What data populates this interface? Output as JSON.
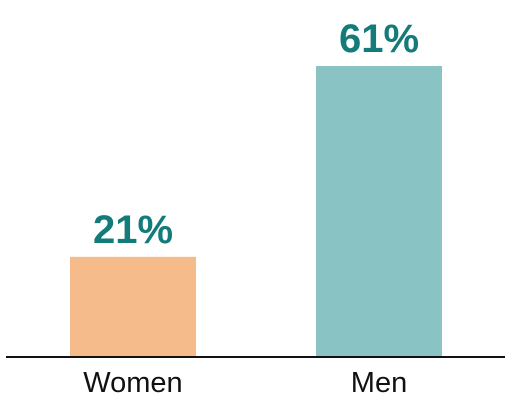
{
  "chart_data": {
    "type": "bar",
    "categories": [
      "Women",
      "Men"
    ],
    "values": [
      21,
      61
    ],
    "value_labels": [
      "21%",
      "61%"
    ],
    "bar_colors": [
      "#f5bb8a",
      "#89c3c4"
    ],
    "label_color": "#137b79",
    "baseline_color": "#111111",
    "title": "",
    "xlabel": "",
    "ylabel": "",
    "ylim": [
      0,
      100
    ],
    "grid": false,
    "legend": "none"
  }
}
